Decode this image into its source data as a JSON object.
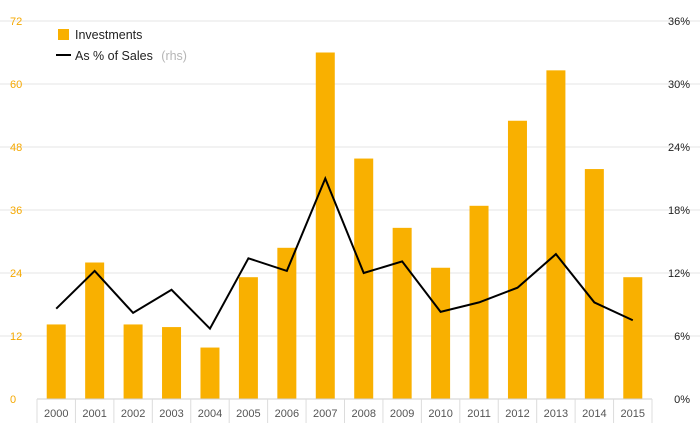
{
  "chart_data": {
    "type": "bar",
    "categories": [
      "2000",
      "2001",
      "2002",
      "2003",
      "2004",
      "2005",
      "2006",
      "2007",
      "2008",
      "2009",
      "2010",
      "2011",
      "2012",
      "2013",
      "2014",
      "2015"
    ],
    "series": [
      {
        "name": "Investments",
        "type": "bar",
        "axis": "left",
        "values": [
          14.2,
          26,
          14.2,
          13.7,
          9.8,
          23.2,
          28.8,
          66,
          45.8,
          32.6,
          25,
          36.8,
          53,
          62.6,
          43.8,
          23.2
        ]
      },
      {
        "name": "As % of Sales",
        "name_note": "(rhs)",
        "type": "line",
        "axis": "right",
        "values": [
          8.6,
          12.2,
          8.2,
          10.4,
          6.7,
          13.4,
          12.2,
          21,
          12,
          13.1,
          8.3,
          9.2,
          10.6,
          13.8,
          9.2,
          7.5
        ]
      }
    ],
    "y_left": {
      "ylim": [
        0,
        72
      ],
      "ticks": [
        "0",
        "12",
        "24",
        "36",
        "48",
        "60",
        "72"
      ],
      "tick_values": [
        0,
        12,
        24,
        36,
        48,
        60,
        72
      ]
    },
    "y_right": {
      "ylim": [
        0,
        36
      ],
      "ticks": [
        "0%",
        "6%",
        "12%",
        "18%",
        "24%",
        "30%",
        "36%"
      ],
      "tick_values": [
        0,
        6,
        12,
        18,
        24,
        30,
        36
      ]
    },
    "legend_position": "top-left",
    "grid": true,
    "colors": {
      "bar": "#f9b000",
      "line": "#000000",
      "grid": "#e6e6e6",
      "left_ticks": "#f5a800",
      "right_ticks": "#222222"
    }
  }
}
